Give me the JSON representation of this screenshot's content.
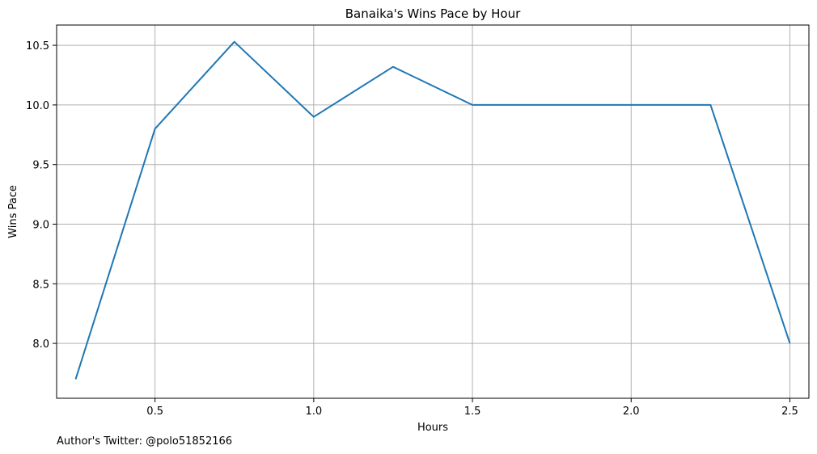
{
  "chart_data": {
    "type": "line",
    "title": "Banaika's Wins Pace by Hour",
    "xlabel": "Hours",
    "ylabel": "Wins Pace",
    "xlim": [
      0.19,
      2.56
    ],
    "ylim": [
      7.54,
      10.67
    ],
    "xticks": [
      0.5,
      1.0,
      1.5,
      2.0,
      2.5
    ],
    "xtick_labels": [
      "0.5",
      "1.0",
      "1.5",
      "2.0",
      "2.5"
    ],
    "yticks": [
      8.0,
      8.5,
      9.0,
      9.5,
      10.0,
      10.5
    ],
    "ytick_labels": [
      "8.0",
      "8.5",
      "9.0",
      "9.5",
      "10.0",
      "10.5"
    ],
    "grid": true,
    "series": [
      {
        "color": "#1f77b4",
        "x": [
          0.25,
          0.5,
          0.75,
          1.0,
          1.25,
          1.5,
          1.75,
          2.0,
          2.25,
          2.5
        ],
        "y": [
          7.7,
          9.8,
          10.53,
          9.9,
          10.32,
          10.0,
          10.0,
          10.0,
          10.0,
          8.0
        ]
      }
    ]
  },
  "footnote": "Author's Twitter: @polo51852166",
  "colors": {
    "grid": "#b0b0b0",
    "axes": "#000000",
    "line": "#1f77b4"
  }
}
